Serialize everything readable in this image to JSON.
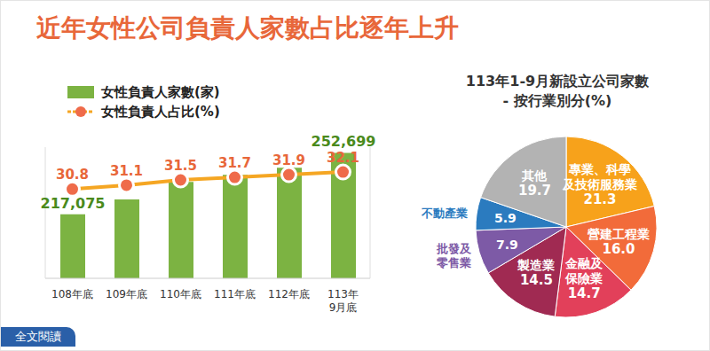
{
  "title": "近年女性公司負責人家數占比逐年上升",
  "link": "全文閱讀",
  "chart_data": [
    {
      "type": "bar",
      "categories": [
        "108年底",
        "109年底",
        "110年底",
        "111年底",
        "112年底",
        "113年9月底"
      ],
      "series": [
        {
          "name": "女性負責人家數(家)",
          "type": "bar",
          "color": "#7cb342",
          "values": [
            217075,
            225700,
            235900,
            240000,
            244000,
            252699
          ],
          "value_labels": [
            "217,075",
            null,
            null,
            null,
            null,
            "252,699"
          ]
        },
        {
          "name": "女性負責人占比(%)",
          "type": "line",
          "axis": "y2",
          "color": "#f5a623",
          "marker": "circle",
          "values": [
            30.8,
            31.1,
            31.5,
            31.7,
            31.9,
            32.1
          ]
        }
      ],
      "ylim": [
        180000,
        256000
      ],
      "yticks": [],
      "y2lim": [
        24,
        34
      ],
      "y2ticks": [],
      "tick_labels": "x",
      "legend": "top-left",
      "data_labels": true
    },
    {
      "type": "pie",
      "title": "113年1-9月新設立公司家數",
      "subtitle": "- 按行業別分(%)",
      "categories": [
        "專業、科學及技術服務業",
        "營建工程業",
        "金融及保險業",
        "製造業",
        "批發及零售業",
        "不動產業",
        "其他"
      ],
      "values": [
        21.3,
        16.0,
        14.7,
        14.5,
        7.9,
        5.9,
        19.7
      ],
      "value_labels": [
        "21.3",
        "16.0",
        "14.7",
        "14.5",
        "7.9",
        "5.9",
        "19.7"
      ],
      "colors": [
        "#f7a21b",
        "#f26b3a",
        "#e2405a",
        "#a02a52",
        "#7d5aa6",
        "#2b7bbf",
        "#b3b3b3"
      ],
      "data_labels": true
    }
  ]
}
